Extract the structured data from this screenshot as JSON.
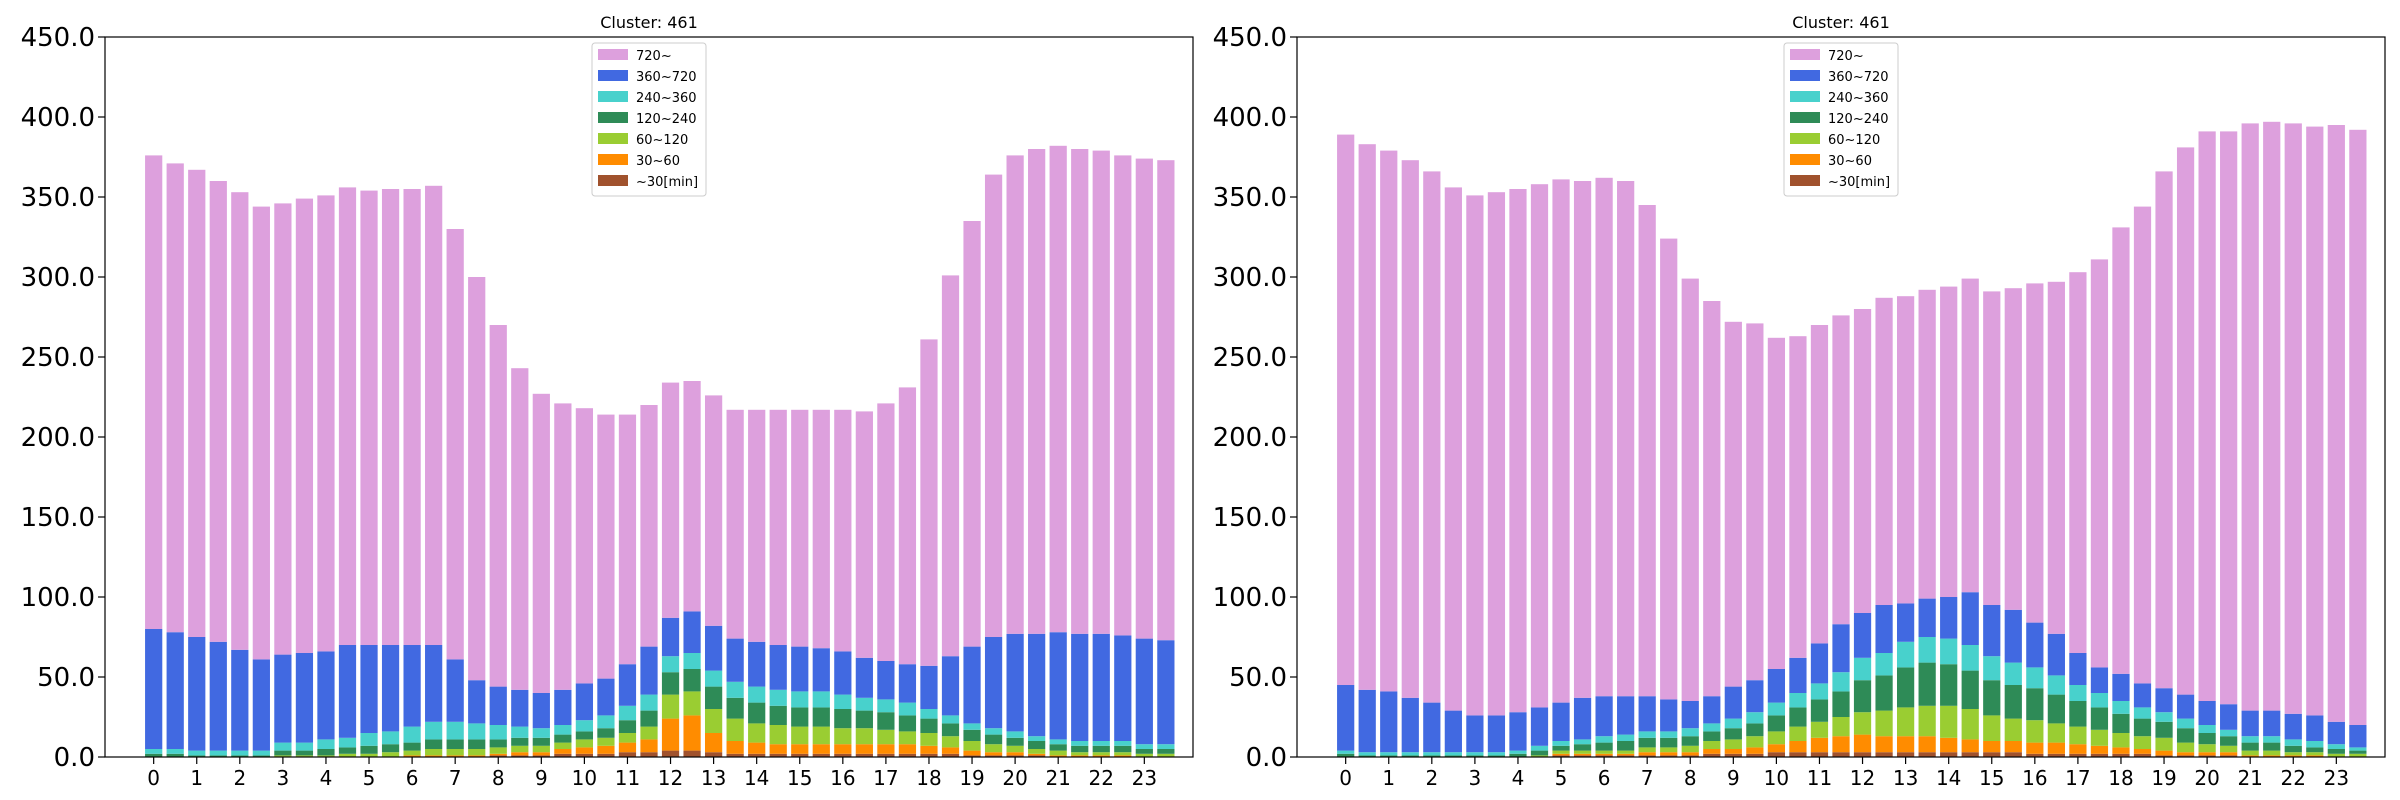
{
  "chart_data": [
    {
      "type": "bar",
      "stacked": true,
      "title": "Cluster: 461",
      "xlabel": "",
      "ylabel": "",
      "ylim": [
        0,
        450
      ],
      "yticks": [
        "0.0",
        "50.0",
        "100.0",
        "150.0",
        "200.0",
        "250.0",
        "300.0",
        "350.0",
        "400.0",
        "450.0"
      ],
      "xtick_labels": [
        "0",
        "1",
        "2",
        "3",
        "4",
        "5",
        "6",
        "7",
        "8",
        "9",
        "10",
        "11",
        "12",
        "13",
        "14",
        "15",
        "16",
        "17",
        "18",
        "19",
        "20",
        "21",
        "22",
        "23"
      ],
      "x": [
        0,
        0.5,
        1,
        1.5,
        2,
        2.5,
        3,
        3.5,
        4,
        4.5,
        5,
        5.5,
        6,
        6.5,
        7,
        7.5,
        8,
        8.5,
        9,
        9.5,
        10,
        10.5,
        11,
        11.5,
        12,
        12.5,
        13,
        13.5,
        14,
        14.5,
        15,
        15.5,
        16,
        16.5,
        17,
        17.5,
        18,
        18.5,
        19,
        19.5,
        20,
        20.5,
        21,
        21.5,
        22,
        22.5,
        23,
        23.5
      ],
      "legend_position": "top-center",
      "series": [
        {
          "name": "~30[min]",
          "color": "#a0522d",
          "values": [
            0,
            0,
            0,
            0,
            0,
            0,
            0,
            0,
            0,
            0,
            0,
            0,
            0,
            0,
            0,
            0,
            1,
            1,
            1,
            2,
            2,
            2,
            3,
            3,
            4,
            4,
            3,
            2,
            2,
            2,
            2,
            2,
            2,
            2,
            2,
            2,
            2,
            2,
            1,
            1,
            1,
            1,
            0,
            0,
            0,
            0,
            0,
            0
          ]
        },
        {
          "name": "30~60",
          "color": "#ff8c00",
          "values": [
            0,
            0,
            0,
            0,
            0,
            0,
            0,
            0,
            0,
            0,
            0,
            0,
            1,
            1,
            1,
            1,
            1,
            2,
            2,
            3,
            4,
            5,
            6,
            8,
            20,
            22,
            12,
            8,
            7,
            6,
            6,
            6,
            6,
            6,
            6,
            6,
            5,
            4,
            3,
            2,
            2,
            1,
            1,
            1,
            1,
            1,
            0,
            0
          ]
        },
        {
          "name": "60~120",
          "color": "#9acd32",
          "values": [
            0,
            0,
            0,
            0,
            0,
            0,
            1,
            1,
            1,
            2,
            2,
            3,
            3,
            4,
            4,
            4,
            4,
            4,
            4,
            4,
            5,
            5,
            6,
            8,
            15,
            15,
            15,
            14,
            12,
            12,
            11,
            11,
            10,
            10,
            9,
            8,
            8,
            7,
            6,
            5,
            4,
            3,
            3,
            2,
            2,
            2,
            2,
            2
          ]
        },
        {
          "name": "120~240",
          "color": "#2e8b57",
          "values": [
            2,
            2,
            1,
            1,
            1,
            1,
            3,
            3,
            4,
            4,
            5,
            5,
            5,
            6,
            6,
            6,
            5,
            5,
            5,
            5,
            5,
            6,
            8,
            10,
            14,
            14,
            14,
            13,
            13,
            12,
            12,
            12,
            12,
            11,
            11,
            10,
            9,
            8,
            7,
            6,
            5,
            5,
            4,
            4,
            4,
            4,
            3,
            3
          ]
        },
        {
          "name": "240~360",
          "color": "#48d1cc",
          "values": [
            3,
            3,
            3,
            3,
            3,
            3,
            5,
            5,
            6,
            6,
            8,
            8,
            10,
            11,
            11,
            10,
            9,
            7,
            6,
            6,
            7,
            8,
            9,
            10,
            10,
            10,
            10,
            10,
            10,
            10,
            10,
            10,
            9,
            8,
            8,
            8,
            6,
            5,
            4,
            4,
            4,
            3,
            3,
            3,
            3,
            3,
            3,
            3
          ]
        },
        {
          "name": "360~720",
          "color": "#4169e1",
          "values": [
            75,
            73,
            71,
            68,
            63,
            57,
            55,
            56,
            55,
            58,
            55,
            54,
            51,
            48,
            39,
            27,
            24,
            23,
            22,
            22,
            23,
            23,
            26,
            30,
            24,
            26,
            28,
            27,
            28,
            28,
            28,
            27,
            27,
            25,
            24,
            24,
            27,
            37,
            48,
            57,
            61,
            64,
            67,
            67,
            67,
            66,
            66,
            65
          ]
        },
        {
          "name": "720~",
          "color": "#dda0dd",
          "values": [
            296,
            293,
            292,
            288,
            286,
            283,
            282,
            284,
            285,
            286,
            284,
            285,
            285,
            287,
            269,
            252,
            226,
            201,
            187,
            179,
            172,
            165,
            156,
            151,
            147,
            144,
            144,
            143,
            145,
            147,
            148,
            149,
            151,
            154,
            161,
            173,
            204,
            238,
            266,
            289,
            299,
            303,
            304,
            303,
            302,
            300,
            300,
            300
          ]
        }
      ]
    },
    {
      "type": "bar",
      "stacked": true,
      "title": "Cluster: 461",
      "xlabel": "",
      "ylabel": "",
      "ylim": [
        0,
        450
      ],
      "yticks": [
        "0.0",
        "50.0",
        "100.0",
        "150.0",
        "200.0",
        "250.0",
        "300.0",
        "350.0",
        "400.0",
        "450.0"
      ],
      "xtick_labels": [
        "0",
        "1",
        "2",
        "3",
        "4",
        "5",
        "6",
        "7",
        "8",
        "9",
        "10",
        "11",
        "12",
        "13",
        "14",
        "15",
        "16",
        "17",
        "18",
        "19",
        "20",
        "21",
        "22",
        "23"
      ],
      "x": [
        0,
        0.5,
        1,
        1.5,
        2,
        2.5,
        3,
        3.5,
        4,
        4.5,
        5,
        5.5,
        6,
        6.5,
        7,
        7.5,
        8,
        8.5,
        9,
        9.5,
        10,
        10.5,
        11,
        11.5,
        12,
        12.5,
        13,
        13.5,
        14,
        14.5,
        15,
        15.5,
        16,
        16.5,
        17,
        17.5,
        18,
        18.5,
        19,
        19.5,
        20,
        20.5,
        21,
        21.5,
        22,
        22.5,
        23,
        23.5
      ],
      "legend_position": "top-center",
      "series": [
        {
          "name": "~30[min]",
          "color": "#a0522d",
          "values": [
            0,
            0,
            0,
            0,
            0,
            0,
            0,
            0,
            0,
            0,
            1,
            1,
            1,
            1,
            1,
            1,
            1,
            2,
            2,
            2,
            3,
            3,
            3,
            3,
            3,
            3,
            3,
            3,
            3,
            3,
            3,
            3,
            2,
            2,
            2,
            2,
            2,
            2,
            1,
            1,
            1,
            1,
            0,
            0,
            0,
            0,
            0,
            0
          ]
        },
        {
          "name": "30~60",
          "color": "#ff8c00",
          "values": [
            0,
            0,
            0,
            0,
            0,
            0,
            0,
            0,
            0,
            0,
            1,
            1,
            1,
            1,
            2,
            2,
            2,
            3,
            3,
            4,
            5,
            7,
            9,
            10,
            11,
            10,
            10,
            10,
            9,
            8,
            7,
            7,
            7,
            7,
            6,
            5,
            4,
            3,
            3,
            2,
            2,
            2,
            1,
            1,
            1,
            1,
            0,
            0
          ]
        },
        {
          "name": "60~120",
          "color": "#9acd32",
          "values": [
            0,
            0,
            0,
            0,
            0,
            0,
            0,
            0,
            0,
            1,
            2,
            2,
            2,
            2,
            3,
            3,
            4,
            5,
            6,
            7,
            8,
            9,
            10,
            12,
            14,
            16,
            18,
            19,
            20,
            19,
            16,
            14,
            14,
            12,
            11,
            10,
            9,
            8,
            8,
            6,
            5,
            4,
            3,
            3,
            2,
            2,
            2,
            2
          ]
        },
        {
          "name": "120~240",
          "color": "#2e8b57",
          "values": [
            2,
            1,
            1,
            1,
            1,
            1,
            1,
            1,
            2,
            3,
            3,
            4,
            5,
            6,
            6,
            6,
            6,
            6,
            7,
            8,
            10,
            12,
            14,
            16,
            20,
            22,
            25,
            27,
            26,
            24,
            22,
            21,
            20,
            18,
            16,
            14,
            12,
            11,
            10,
            9,
            7,
            6,
            5,
            5,
            4,
            3,
            3,
            2
          ]
        },
        {
          "name": "240~360",
          "color": "#48d1cc",
          "values": [
            2,
            2,
            2,
            2,
            2,
            2,
            2,
            2,
            2,
            3,
            3,
            3,
            4,
            4,
            4,
            4,
            5,
            5,
            6,
            7,
            8,
            9,
            10,
            12,
            14,
            14,
            16,
            16,
            16,
            16,
            15,
            14,
            13,
            12,
            10,
            9,
            8,
            7,
            6,
            6,
            5,
            4,
            4,
            4,
            4,
            4,
            3,
            2
          ]
        },
        {
          "name": "360~720",
          "color": "#4169e1",
          "values": [
            41,
            39,
            38,
            34,
            31,
            26,
            23,
            23,
            24,
            24,
            24,
            26,
            25,
            24,
            22,
            20,
            17,
            17,
            20,
            20,
            21,
            22,
            25,
            30,
            28,
            30,
            24,
            24,
            26,
            33,
            32,
            33,
            28,
            26,
            20,
            16,
            17,
            15,
            15,
            15,
            15,
            16,
            16,
            16,
            16,
            16,
            14,
            14
          ]
        },
        {
          "name": "720~",
          "color": "#dda0dd",
          "values": [
            344,
            341,
            338,
            336,
            332,
            327,
            325,
            327,
            327,
            327,
            327,
            323,
            324,
            322,
            307,
            288,
            264,
            247,
            228,
            223,
            207,
            201,
            199,
            193,
            190,
            192,
            192,
            193,
            194,
            196,
            196,
            201,
            212,
            220,
            238,
            255,
            279,
            298,
            323,
            342,
            356,
            358,
            367,
            368,
            369,
            368,
            373,
            372
          ]
        }
      ]
    }
  ]
}
